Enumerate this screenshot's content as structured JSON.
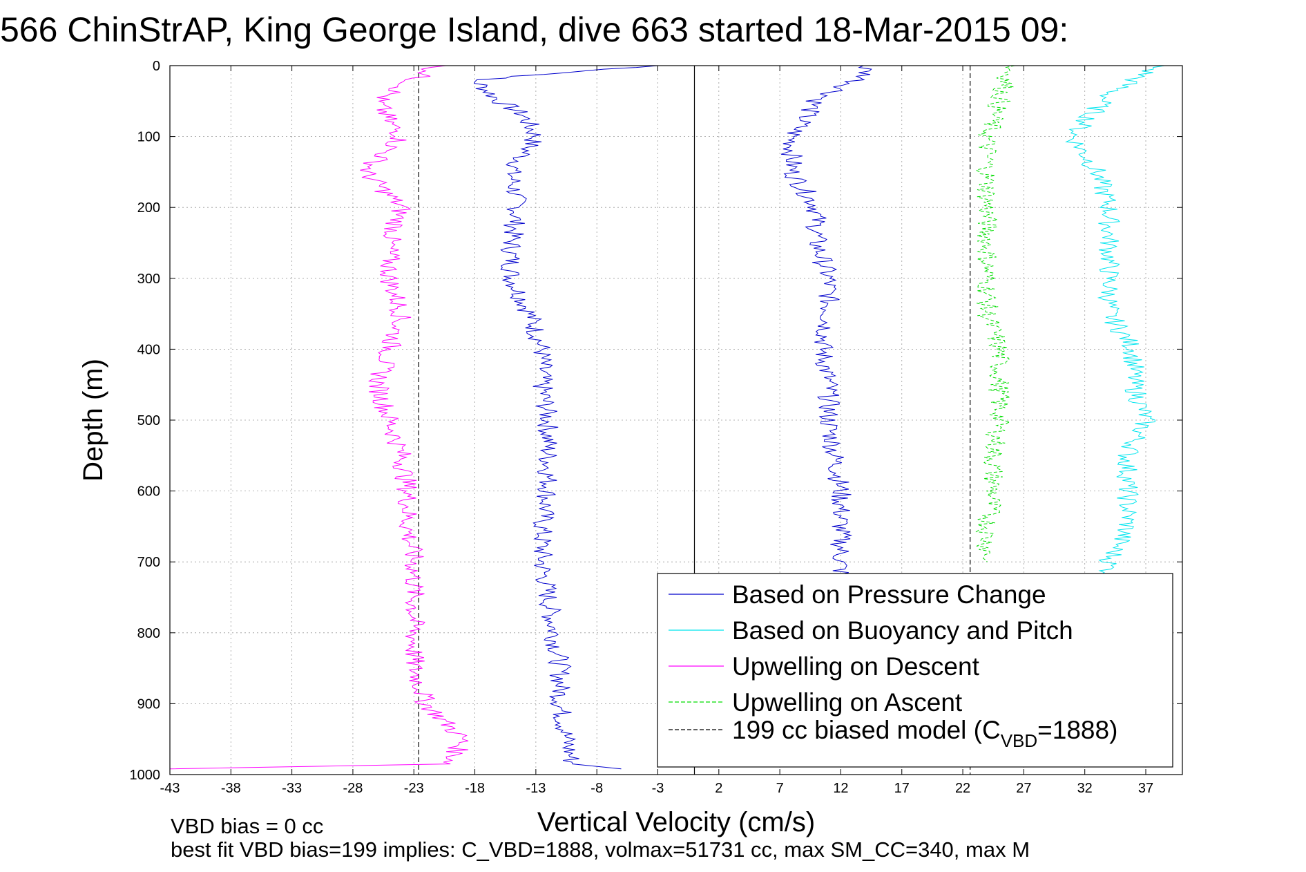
{
  "chart_data": {
    "type": "line",
    "title": "566 ChinStrAP, King George Island, dive 663 started 18-Mar-2015 09:",
    "xlabel": "Vertical Velocity (cm/s)",
    "ylabel": "Depth (m)",
    "xlim": [
      -43,
      40
    ],
    "ylim": [
      0,
      1000
    ],
    "y_reversed": true,
    "grid": true,
    "x_ticks": [
      -43,
      -38,
      -33,
      -28,
      -23,
      -18,
      -13,
      -8,
      -3,
      2,
      7,
      12,
      17,
      22,
      27,
      32,
      37
    ],
    "y_ticks": [
      0,
      100,
      200,
      300,
      400,
      500,
      600,
      700,
      800,
      900,
      1000
    ],
    "reference_lines": [
      {
        "x": 0,
        "style": "solid",
        "color": "#000000"
      },
      {
        "x": -22.6,
        "style": "dashed",
        "color": "#000000"
      },
      {
        "x": 22.6,
        "style": "dashed",
        "color": "#000000"
      }
    ],
    "legend_position": "lower-right",
    "series": [
      {
        "name": "Based on Pressure Change",
        "color": "#0000cc",
        "style": "solid",
        "points": [
          [
            -3,
            0
          ],
          [
            -18,
            20
          ],
          [
            -16,
            50
          ],
          [
            -14,
            70
          ],
          [
            -13,
            100
          ],
          [
            -15,
            150
          ],
          [
            -14.5,
            200
          ],
          [
            -15,
            250
          ],
          [
            -15,
            300
          ],
          [
            -13.5,
            350
          ],
          [
            -12.5,
            400
          ],
          [
            -12.5,
            450
          ],
          [
            -12,
            500
          ],
          [
            -12,
            550
          ],
          [
            -12,
            600
          ],
          [
            -12.5,
            650
          ],
          [
            -12.5,
            700
          ],
          [
            -12,
            750
          ],
          [
            -11.5,
            800
          ],
          [
            -11,
            850
          ],
          [
            -11,
            900
          ],
          [
            -10.5,
            950
          ],
          [
            -10,
            985
          ],
          [
            -6,
            992
          ]
        ]
      },
      {
        "name": "Based on Pressure Change",
        "color": "#0000cc",
        "style": "solid",
        "points": [
          [
            14,
            0
          ],
          [
            14,
            15
          ],
          [
            10,
            50
          ],
          [
            8,
            100
          ],
          [
            8,
            150
          ],
          [
            10,
            200
          ],
          [
            10,
            250
          ],
          [
            11,
            300
          ],
          [
            11,
            350
          ],
          [
            10.5,
            400
          ],
          [
            11,
            450
          ],
          [
            11,
            500
          ],
          [
            11.5,
            550
          ],
          [
            12,
            600
          ],
          [
            12,
            650
          ],
          [
            12,
            700
          ],
          [
            12,
            720
          ]
        ]
      },
      {
        "name": "Based on Buoyancy and Pitch",
        "color": "#00e5ee",
        "style": "solid",
        "points": [
          [
            38,
            0
          ],
          [
            34,
            40
          ],
          [
            31,
            100
          ],
          [
            33,
            150
          ],
          [
            34,
            200
          ],
          [
            34,
            250
          ],
          [
            34,
            300
          ],
          [
            34,
            350
          ],
          [
            36,
            400
          ],
          [
            36,
            450
          ],
          [
            37,
            500
          ],
          [
            35.5,
            550
          ],
          [
            35.5,
            600
          ],
          [
            35.5,
            650
          ],
          [
            34,
            700
          ],
          [
            34,
            720
          ]
        ]
      },
      {
        "name": "Upwelling on Descent",
        "color": "#ff00ff",
        "style": "solid",
        "points": [
          [
            -21,
            0
          ],
          [
            -23,
            20
          ],
          [
            -26,
            50
          ],
          [
            -25,
            80
          ],
          [
            -24,
            100
          ],
          [
            -27,
            150
          ],
          [
            -24,
            200
          ],
          [
            -25,
            250
          ],
          [
            -25,
            300
          ],
          [
            -24,
            350
          ],
          [
            -25,
            400
          ],
          [
            -26,
            450
          ],
          [
            -25,
            500
          ],
          [
            -24,
            550
          ],
          [
            -23.5,
            600
          ],
          [
            -23.5,
            650
          ],
          [
            -23,
            700
          ],
          [
            -23,
            750
          ],
          [
            -23,
            800
          ],
          [
            -23,
            850
          ],
          [
            -22,
            900
          ],
          [
            -19,
            950
          ],
          [
            -20,
            985
          ],
          [
            -43,
            992
          ]
        ]
      },
      {
        "name": "Upwelling on Ascent",
        "color": "#00dd00",
        "style": "dashed",
        "points": [
          [
            26,
            0
          ],
          [
            25,
            50
          ],
          [
            24,
            100
          ],
          [
            24,
            150
          ],
          [
            24,
            200
          ],
          [
            24,
            250
          ],
          [
            24,
            300
          ],
          [
            24,
            350
          ],
          [
            25,
            400
          ],
          [
            25,
            450
          ],
          [
            25,
            500
          ],
          [
            24.5,
            550
          ],
          [
            24.5,
            600
          ],
          [
            24,
            650
          ],
          [
            24,
            700
          ]
        ]
      },
      {
        "name": "199 cc biased model (C_VBD=1888)",
        "color": "#000000",
        "style": "dashed",
        "points": []
      }
    ]
  },
  "legend": [
    {
      "label": "Based on Pressure Change",
      "color": "#0000cc",
      "dash": "solid"
    },
    {
      "label": "Based on Buoyancy and Pitch",
      "color": "#00e5ee",
      "dash": "solid"
    },
    {
      "label": "Upwelling on Descent",
      "color": "#ff00ff",
      "dash": "solid"
    },
    {
      "label": "Upwelling on Ascent",
      "color": "#00dd00",
      "dash": "dashed"
    },
    {
      "label_main": "199 cc biased model (C",
      "label_sub": "VBD",
      "label_end": "=1888)",
      "color": "#000000",
      "dash": "dashed"
    }
  ],
  "footer": {
    "line1": "VBD bias = 0 cc",
    "line2": "best fit VBD bias=199 implies: C_VBD=1888, volmax=51731 cc, max SM_CC=340, max M"
  }
}
